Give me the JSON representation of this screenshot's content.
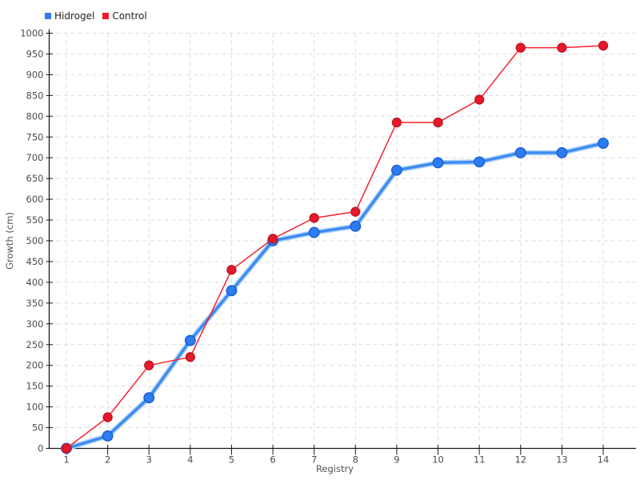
{
  "legend": {
    "items": [
      {
        "label": "Hidrogel",
        "color": "#2d7df0"
      },
      {
        "label": "Control",
        "color": "#ec1c2c"
      }
    ]
  },
  "chart_data": {
    "type": "line",
    "title": "",
    "xlabel": "Registry",
    "ylabel": "Growth (cm)",
    "x": [
      1,
      2,
      3,
      4,
      5,
      6,
      7,
      8,
      9,
      10,
      11,
      12,
      13,
      14
    ],
    "series": [
      {
        "name": "Hidrogel",
        "values": [
          0,
          30,
          122,
          260,
          380,
          500,
          520,
          535,
          670,
          688,
          690,
          712,
          712,
          735
        ],
        "line_color": "#3d8bf0",
        "halo_color": "#aed2f8",
        "marker_fill": "#2d7df0",
        "marker_stroke": "#1c5ed8",
        "line_width": 3.4,
        "halo_width": 6.5,
        "marker_radius": 6.2
      },
      {
        "name": "Control",
        "values": [
          0,
          75,
          200,
          220,
          430,
          505,
          555,
          570,
          785,
          785,
          840,
          965,
          965,
          970
        ],
        "line_color": "#f5232e",
        "halo_color": "",
        "marker_fill": "#e6192a",
        "marker_stroke": "#c11423",
        "line_width": 1.5,
        "halo_width": 0,
        "marker_radius": 5.4
      }
    ],
    "ylim": [
      0,
      1000
    ],
    "y_tick_step": 50,
    "grid": "dashed",
    "legend_position": "top-left",
    "grid_color": "#dcdcdc",
    "axis_color": "#1a1a1a",
    "tick_label_color": "#4d4d4d",
    "axis_label_color": "#555555"
  }
}
